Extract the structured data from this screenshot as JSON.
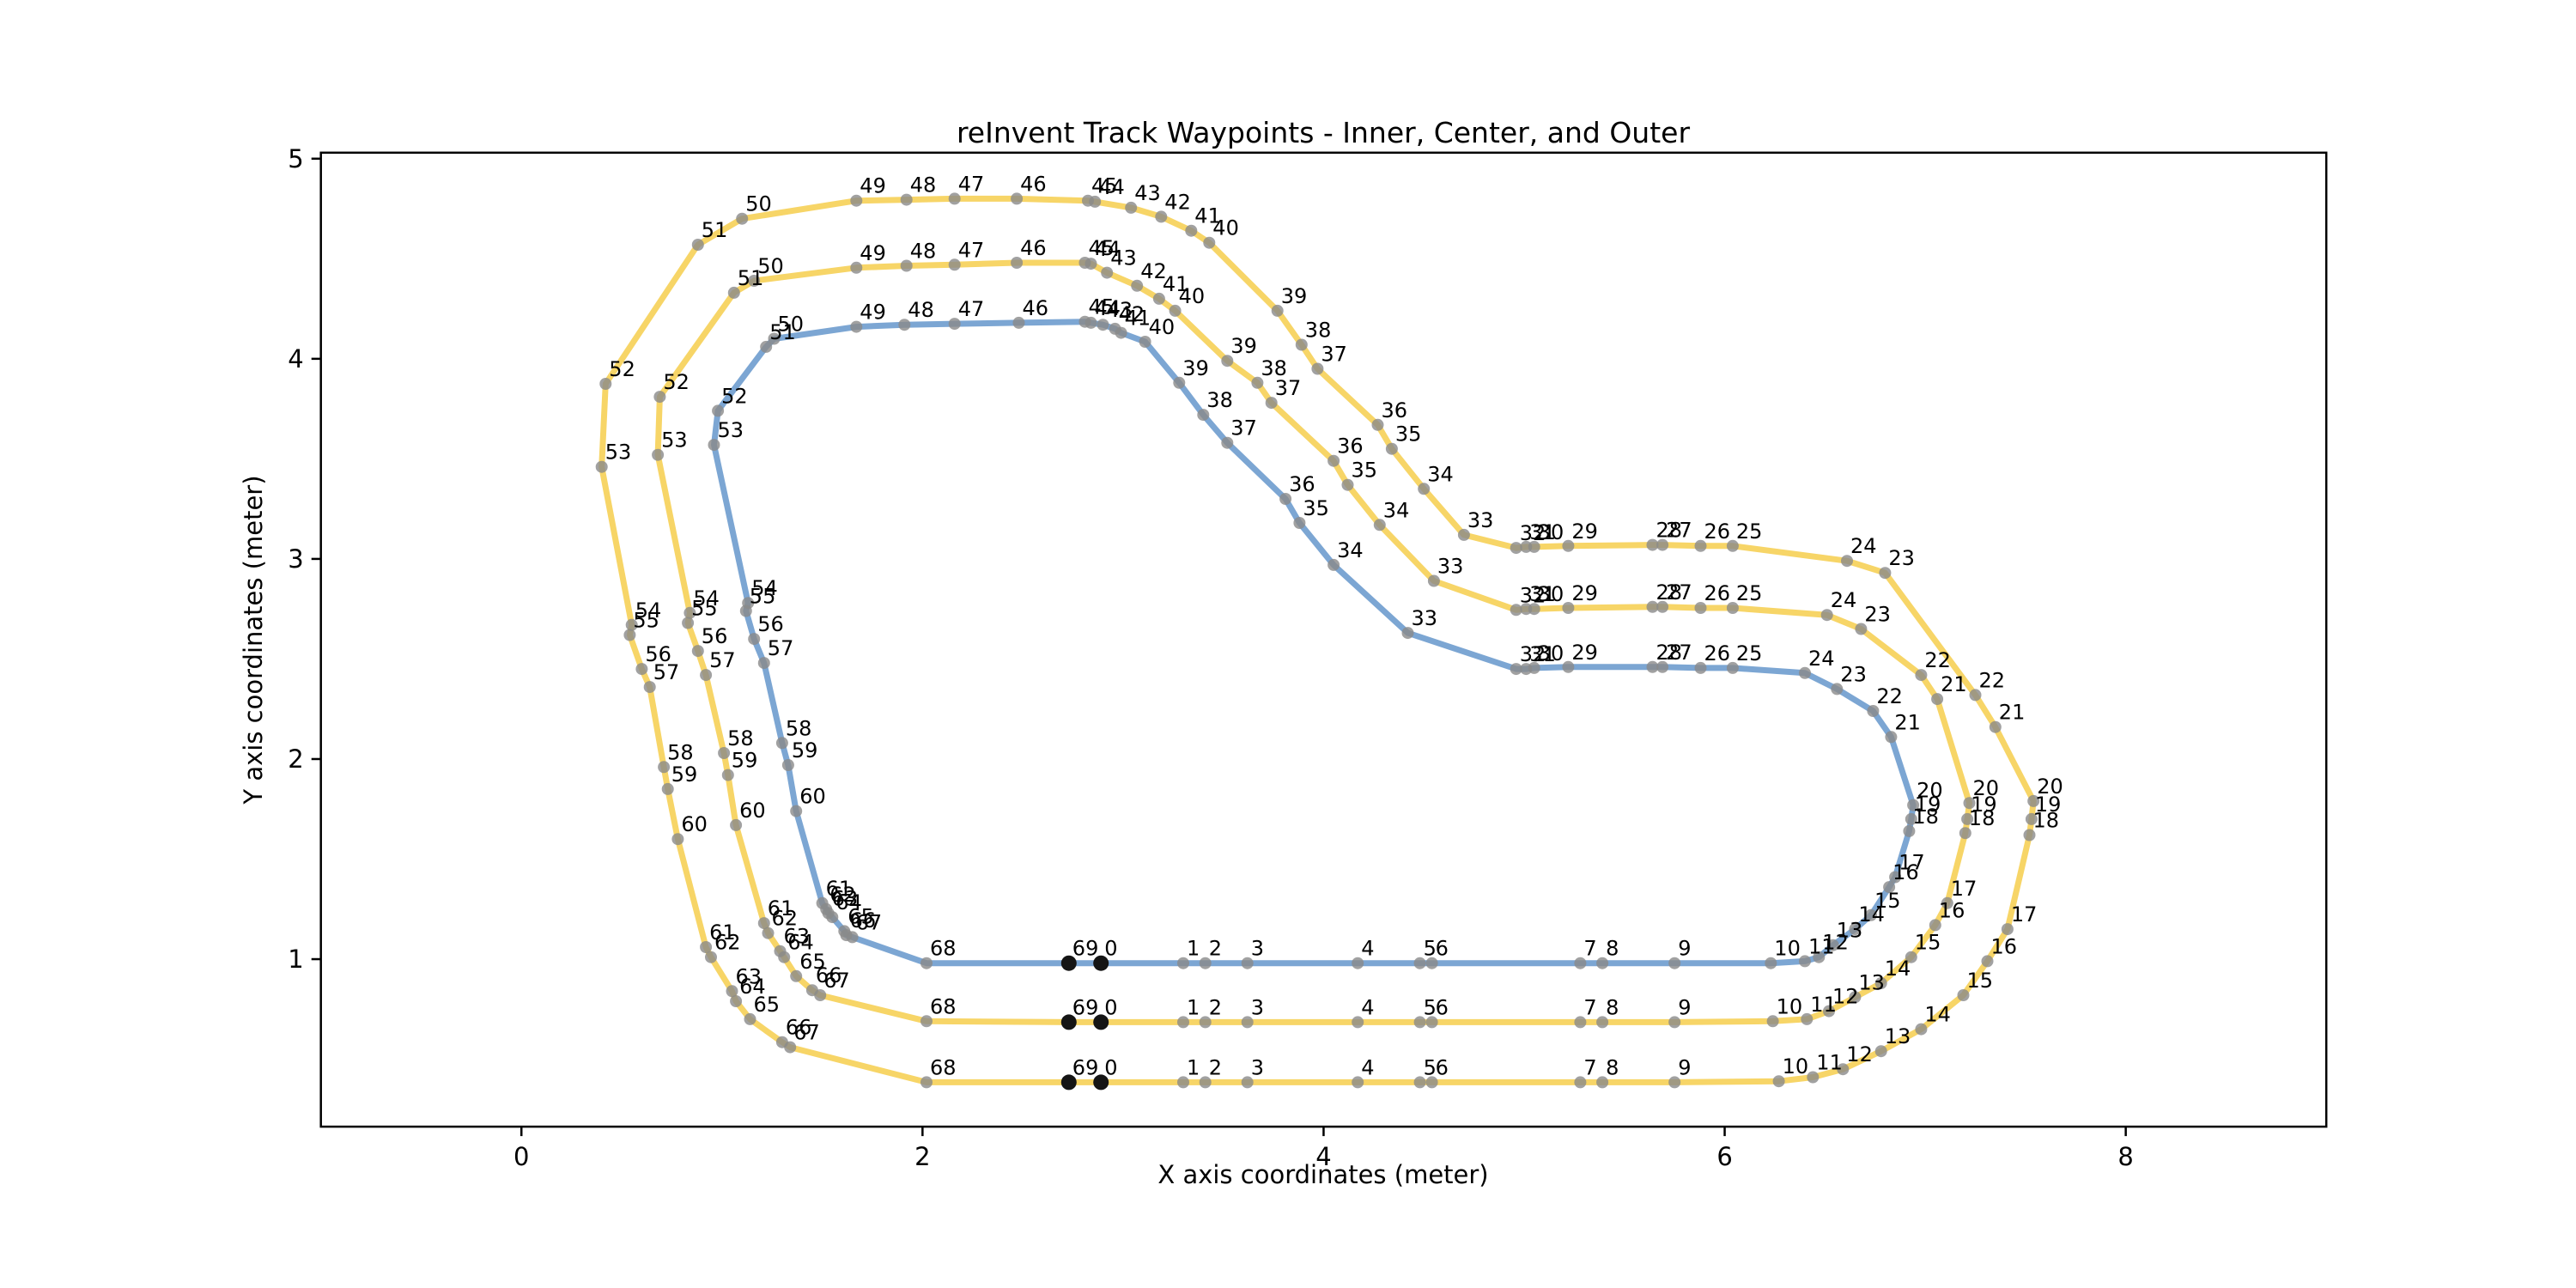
{
  "title": "reInvent Track Waypoints - Inner, Center, and Outer",
  "axes": {
    "xlabel": "X axis coordinates (meter)",
    "ylabel": "Y axis coordinates (meter)",
    "xticks": [
      "0",
      "2",
      "4",
      "6",
      "8"
    ],
    "xtick_values": [
      0,
      2,
      4,
      6,
      8
    ],
    "yticks": [
      "1",
      "2",
      "3",
      "4",
      "5"
    ],
    "ytick_values": [
      1,
      2,
      3,
      4,
      5
    ],
    "xlim": [
      -1.0,
      9.0
    ],
    "ylim": [
      0.163,
      5.03
    ]
  },
  "colors": {
    "inner_line": "#7ca6d3",
    "center_line": "#f7d567",
    "outer_line": "#f7d567",
    "waypoint_dot": "#8a8a8a",
    "start_marker": "#151515",
    "text": "#000000",
    "spine": "#000000",
    "background": "#ffffff"
  },
  "chart_data": {
    "type": "line",
    "title": "reInvent Track Waypoints - Inner, Center, and Outer",
    "xlabel": "X axis coordinates (meter)",
    "ylabel": "Y axis coordinates (meter)",
    "xlim": [
      -1.0,
      9.0
    ],
    "ylim": [
      0.163,
      5.03
    ],
    "grid": false,
    "legend": "none",
    "closed_loops": true,
    "labels": [
      0,
      1,
      2,
      3,
      4,
      5,
      6,
      7,
      8,
      9,
      10,
      11,
      12,
      13,
      14,
      15,
      16,
      17,
      18,
      19,
      20,
      21,
      22,
      23,
      24,
      25,
      26,
      27,
      28,
      29,
      30,
      31,
      32,
      33,
      34,
      35,
      36,
      37,
      38,
      39,
      40,
      41,
      42,
      43,
      44,
      45,
      46,
      47,
      48,
      49,
      50,
      51,
      52,
      53,
      54,
      55,
      56,
      57,
      58,
      59,
      60,
      61,
      62,
      63,
      64,
      65,
      66,
      67,
      68,
      69
    ],
    "start_marker_indices": [
      69,
      0
    ],
    "series": [
      {
        "name": "outer",
        "color": "#f7d567",
        "points": [
          [
            2.89,
            0.385
          ],
          [
            3.3,
            0.385
          ],
          [
            3.41,
            0.385
          ],
          [
            3.62,
            0.385
          ],
          [
            4.17,
            0.385
          ],
          [
            4.48,
            0.385
          ],
          [
            4.54,
            0.385
          ],
          [
            5.28,
            0.385
          ],
          [
            5.39,
            0.385
          ],
          [
            5.75,
            0.385
          ],
          [
            6.27,
            0.39
          ],
          [
            6.44,
            0.41
          ],
          [
            6.59,
            0.45
          ],
          [
            6.78,
            0.54
          ],
          [
            6.98,
            0.65
          ],
          [
            7.19,
            0.82
          ],
          [
            7.31,
            0.99
          ],
          [
            7.41,
            1.15
          ],
          [
            7.52,
            1.62
          ],
          [
            7.53,
            1.7
          ],
          [
            7.54,
            1.79
          ],
          [
            7.35,
            2.16
          ],
          [
            7.25,
            2.32
          ],
          [
            6.8,
            2.93
          ],
          [
            6.61,
            2.99
          ],
          [
            6.04,
            3.065
          ],
          [
            5.88,
            3.065
          ],
          [
            5.69,
            3.07
          ],
          [
            5.64,
            3.07
          ],
          [
            5.22,
            3.065
          ],
          [
            5.05,
            3.06
          ],
          [
            5.01,
            3.06
          ],
          [
            4.96,
            3.055
          ],
          [
            4.7,
            3.12
          ],
          [
            4.5,
            3.35
          ],
          [
            4.34,
            3.55
          ],
          [
            4.27,
            3.67
          ],
          [
            3.97,
            3.95
          ],
          [
            3.89,
            4.07
          ],
          [
            3.77,
            4.24
          ],
          [
            3.43,
            4.58
          ],
          [
            3.34,
            4.64
          ],
          [
            3.19,
            4.71
          ],
          [
            3.04,
            4.755
          ],
          [
            2.86,
            4.785
          ],
          [
            2.825,
            4.79
          ],
          [
            2.47,
            4.8
          ],
          [
            2.16,
            4.8
          ],
          [
            1.92,
            4.795
          ],
          [
            1.67,
            4.79
          ],
          [
            1.1,
            4.7
          ],
          [
            0.88,
            4.57
          ],
          [
            0.42,
            3.875
          ],
          [
            0.4,
            3.46
          ],
          [
            0.55,
            2.67
          ],
          [
            0.54,
            2.62
          ],
          [
            0.6,
            2.45
          ],
          [
            0.64,
            2.36
          ],
          [
            0.71,
            1.96
          ],
          [
            0.73,
            1.85
          ],
          [
            0.78,
            1.6
          ],
          [
            0.92,
            1.06
          ],
          [
            0.945,
            1.01
          ],
          [
            1.05,
            0.84
          ],
          [
            1.07,
            0.79
          ],
          [
            1.14,
            0.7
          ],
          [
            1.3,
            0.585
          ],
          [
            1.34,
            0.56
          ],
          [
            2.02,
            0.385
          ],
          [
            2.73,
            0.385
          ]
        ]
      },
      {
        "name": "center",
        "color": "#f7d567",
        "points": [
          [
            2.89,
            0.685
          ],
          [
            3.3,
            0.685
          ],
          [
            3.41,
            0.685
          ],
          [
            3.62,
            0.685
          ],
          [
            4.17,
            0.685
          ],
          [
            4.48,
            0.685
          ],
          [
            4.54,
            0.685
          ],
          [
            5.28,
            0.685
          ],
          [
            5.39,
            0.685
          ],
          [
            5.75,
            0.685
          ],
          [
            6.24,
            0.69
          ],
          [
            6.41,
            0.7
          ],
          [
            6.52,
            0.74
          ],
          [
            6.65,
            0.81
          ],
          [
            6.78,
            0.88
          ],
          [
            6.93,
            1.01
          ],
          [
            7.05,
            1.17
          ],
          [
            7.11,
            1.28
          ],
          [
            7.2,
            1.63
          ],
          [
            7.21,
            1.7
          ],
          [
            7.22,
            1.78
          ],
          [
            7.06,
            2.3
          ],
          [
            6.98,
            2.42
          ],
          [
            6.68,
            2.65
          ],
          [
            6.51,
            2.72
          ],
          [
            6.04,
            2.755
          ],
          [
            5.88,
            2.755
          ],
          [
            5.69,
            2.76
          ],
          [
            5.64,
            2.76
          ],
          [
            5.22,
            2.755
          ],
          [
            5.05,
            2.75
          ],
          [
            5.01,
            2.75
          ],
          [
            4.96,
            2.745
          ],
          [
            4.55,
            2.89
          ],
          [
            4.28,
            3.17
          ],
          [
            4.12,
            3.37
          ],
          [
            4.05,
            3.49
          ],
          [
            3.74,
            3.78
          ],
          [
            3.67,
            3.88
          ],
          [
            3.52,
            3.99
          ],
          [
            3.26,
            4.24
          ],
          [
            3.18,
            4.3
          ],
          [
            3.07,
            4.365
          ],
          [
            2.92,
            4.43
          ],
          [
            2.84,
            4.475
          ],
          [
            2.81,
            4.48
          ],
          [
            2.47,
            4.48
          ],
          [
            2.16,
            4.47
          ],
          [
            1.92,
            4.465
          ],
          [
            1.67,
            4.455
          ],
          [
            1.16,
            4.39
          ],
          [
            1.06,
            4.33
          ],
          [
            0.69,
            3.81
          ],
          [
            0.68,
            3.52
          ],
          [
            0.84,
            2.73
          ],
          [
            0.83,
            2.68
          ],
          [
            0.88,
            2.54
          ],
          [
            0.92,
            2.42
          ],
          [
            1.01,
            2.03
          ],
          [
            1.03,
            1.92
          ],
          [
            1.07,
            1.67
          ],
          [
            1.21,
            1.18
          ],
          [
            1.23,
            1.13
          ],
          [
            1.29,
            1.04
          ],
          [
            1.31,
            1.01
          ],
          [
            1.37,
            0.915
          ],
          [
            1.45,
            0.845
          ],
          [
            1.49,
            0.82
          ],
          [
            2.02,
            0.69
          ],
          [
            2.73,
            0.685
          ]
        ]
      },
      {
        "name": "inner",
        "color": "#7ca6d3",
        "points": [
          [
            2.89,
            0.98
          ],
          [
            3.3,
            0.98
          ],
          [
            3.41,
            0.98
          ],
          [
            3.62,
            0.98
          ],
          [
            4.17,
            0.98
          ],
          [
            4.48,
            0.98
          ],
          [
            4.54,
            0.98
          ],
          [
            5.28,
            0.98
          ],
          [
            5.39,
            0.98
          ],
          [
            5.75,
            0.98
          ],
          [
            6.23,
            0.98
          ],
          [
            6.4,
            0.99
          ],
          [
            6.47,
            1.01
          ],
          [
            6.54,
            1.07
          ],
          [
            6.65,
            1.15
          ],
          [
            6.73,
            1.22
          ],
          [
            6.82,
            1.36
          ],
          [
            6.85,
            1.41
          ],
          [
            6.92,
            1.64
          ],
          [
            6.93,
            1.7
          ],
          [
            6.94,
            1.77
          ],
          [
            6.83,
            2.11
          ],
          [
            6.74,
            2.24
          ],
          [
            6.56,
            2.35
          ],
          [
            6.4,
            2.43
          ],
          [
            6.04,
            2.455
          ],
          [
            5.88,
            2.455
          ],
          [
            5.69,
            2.46
          ],
          [
            5.64,
            2.46
          ],
          [
            5.22,
            2.46
          ],
          [
            5.05,
            2.455
          ],
          [
            5.01,
            2.45
          ],
          [
            4.96,
            2.45
          ],
          [
            4.42,
            2.63
          ],
          [
            4.05,
            2.97
          ],
          [
            3.88,
            3.18
          ],
          [
            3.81,
            3.3
          ],
          [
            3.52,
            3.58
          ],
          [
            3.4,
            3.72
          ],
          [
            3.28,
            3.88
          ],
          [
            3.11,
            4.085
          ],
          [
            2.99,
            4.13
          ],
          [
            2.96,
            4.15
          ],
          [
            2.9,
            4.17
          ],
          [
            2.84,
            4.18
          ],
          [
            2.81,
            4.185
          ],
          [
            2.48,
            4.18
          ],
          [
            2.16,
            4.175
          ],
          [
            1.91,
            4.17
          ],
          [
            1.67,
            4.16
          ],
          [
            1.26,
            4.1
          ],
          [
            1.22,
            4.06
          ],
          [
            0.98,
            3.74
          ],
          [
            0.96,
            3.57
          ],
          [
            1.13,
            2.78
          ],
          [
            1.12,
            2.74
          ],
          [
            1.16,
            2.6
          ],
          [
            1.21,
            2.48
          ],
          [
            1.3,
            2.08
          ],
          [
            1.33,
            1.97
          ],
          [
            1.37,
            1.74
          ],
          [
            1.5,
            1.28
          ],
          [
            1.52,
            1.25
          ],
          [
            1.53,
            1.23
          ],
          [
            1.55,
            1.21
          ],
          [
            1.61,
            1.14
          ],
          [
            1.62,
            1.12
          ],
          [
            1.65,
            1.11
          ],
          [
            2.02,
            0.98
          ],
          [
            2.73,
            0.98
          ]
        ]
      }
    ]
  }
}
